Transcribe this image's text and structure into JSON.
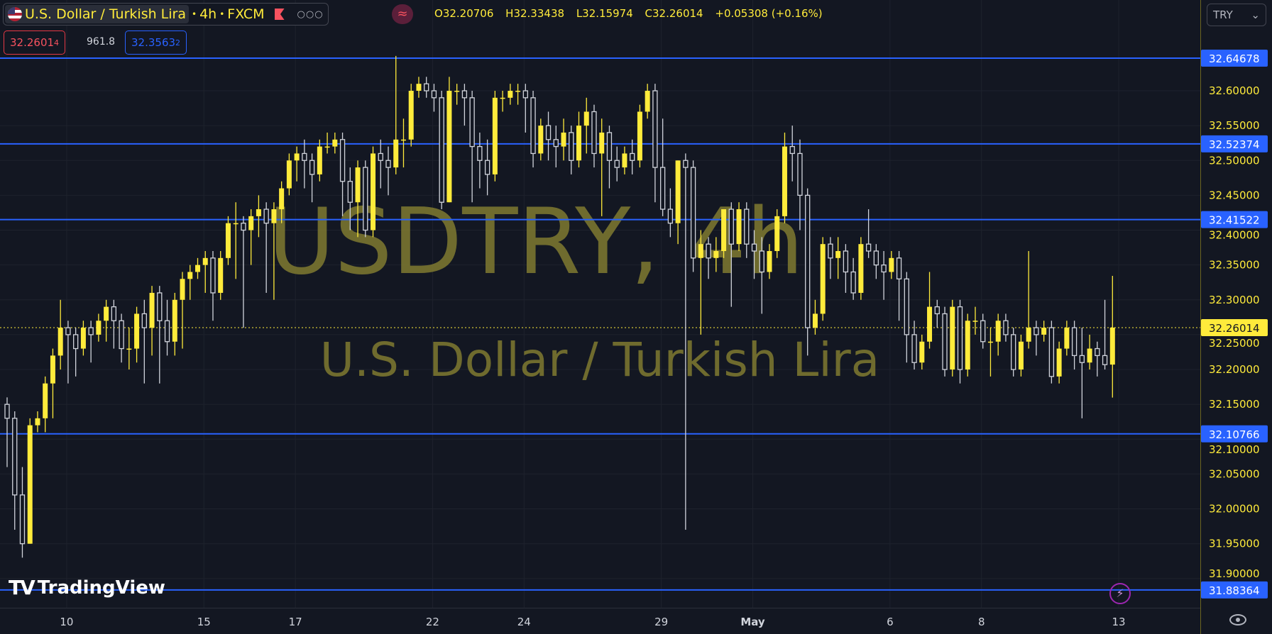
{
  "legend": {
    "symbol": "U.S. Dollar / Turkish Lira",
    "interval": "4h",
    "exchange": "FXCM",
    "more": "○○○",
    "wave": "≈",
    "open_label": "O",
    "open": "32.20706",
    "high_label": "H",
    "high": "32.33438",
    "low_label": "L",
    "low": "32.15974",
    "close_label": "C",
    "close": "32.26014",
    "change": "+0.05308 (+0.16%)"
  },
  "trade": {
    "sell_main": "32.2601",
    "sell_sup": "4",
    "spread": "961.8",
    "buy_main": "32.3563",
    "buy_sup": "2"
  },
  "currency": {
    "value": "TRY",
    "chevron": "⌄"
  },
  "watermark": {
    "line1": "USDTRY, 4h",
    "line2": "U.S. Dollar / Turkish Lira"
  },
  "branding": {
    "logo": "TradingView"
  },
  "icons": {
    "bolt": "⚡",
    "eye": "eye-icon"
  },
  "colors": {
    "up": "#ffeb3b",
    "down": "#d1d4dc",
    "line": "#2962ff",
    "background": "#131722",
    "axis_text": "#ffeb3b",
    "watermark": "#807a30"
  },
  "chart_data": {
    "type": "candlestick",
    "symbol": "USDTRY",
    "interval": "4h",
    "ylim": [
      31.86,
      32.69
    ],
    "y_ticks": [
      "31.90000",
      "31.95000",
      "32.00000",
      "32.05000",
      "32.10000",
      "32.15000",
      "32.20000",
      "32.25000",
      "32.30000",
      "32.35000",
      "32.40000",
      "32.45000",
      "32.50000",
      "32.55000",
      "32.60000"
    ],
    "x_ticks": [
      {
        "label": "10",
        "index": 8
      },
      {
        "label": "15",
        "index": 26
      },
      {
        "label": "17",
        "index": 38
      },
      {
        "label": "22",
        "index": 56
      },
      {
        "label": "24",
        "index": 68
      },
      {
        "label": "29",
        "index": 86
      },
      {
        "label": "May",
        "index": 98,
        "bold": true
      },
      {
        "label": "6",
        "index": 116
      },
      {
        "label": "8",
        "index": 128
      },
      {
        "label": "13",
        "index": 146
      }
    ],
    "horizontal_lines": [
      "32.64678",
      "32.52374",
      "32.41522",
      "32.10766",
      "31.88364"
    ],
    "last_price": "32.26014",
    "candles_ohlc": [
      [
        32.15,
        32.16,
        32.06,
        32.13
      ],
      [
        32.13,
        32.14,
        31.97,
        32.02
      ],
      [
        32.02,
        32.06,
        31.93,
        31.95
      ],
      [
        31.95,
        32.13,
        31.95,
        32.12
      ],
      [
        32.12,
        32.14,
        32.11,
        32.13
      ],
      [
        32.13,
        32.19,
        32.11,
        32.18
      ],
      [
        32.18,
        32.23,
        32.13,
        32.22
      ],
      [
        32.22,
        32.3,
        32.2,
        32.26
      ],
      [
        32.26,
        32.27,
        32.18,
        32.25
      ],
      [
        32.25,
        32.26,
        32.19,
        32.23
      ],
      [
        32.23,
        32.27,
        32.22,
        32.26
      ],
      [
        32.26,
        32.27,
        32.21,
        32.25
      ],
      [
        32.25,
        32.28,
        32.24,
        32.27
      ],
      [
        32.27,
        32.3,
        32.24,
        32.29
      ],
      [
        32.29,
        32.3,
        32.23,
        32.27
      ],
      [
        32.27,
        32.28,
        32.21,
        32.23
      ],
      [
        32.23,
        32.26,
        32.2,
        32.23
      ],
      [
        32.23,
        32.29,
        32.21,
        32.28
      ],
      [
        32.28,
        32.3,
        32.18,
        32.26
      ],
      [
        32.26,
        32.32,
        32.22,
        32.31
      ],
      [
        32.31,
        32.32,
        32.18,
        32.27
      ],
      [
        32.27,
        32.3,
        32.22,
        32.24
      ],
      [
        32.24,
        32.31,
        32.22,
        32.3
      ],
      [
        32.3,
        32.34,
        32.23,
        32.33
      ],
      [
        32.33,
        32.35,
        32.3,
        32.34
      ],
      [
        32.34,
        32.36,
        32.33,
        32.35
      ],
      [
        32.35,
        32.37,
        32.31,
        32.36
      ],
      [
        32.36,
        32.37,
        32.27,
        32.31
      ],
      [
        32.31,
        32.37,
        32.3,
        32.36
      ],
      [
        32.36,
        32.42,
        32.35,
        32.41
      ],
      [
        32.41,
        32.44,
        32.33,
        32.41
      ],
      [
        32.41,
        32.42,
        32.26,
        32.4
      ],
      [
        32.4,
        32.43,
        32.35,
        32.42
      ],
      [
        32.42,
        32.45,
        32.39,
        32.43
      ],
      [
        32.43,
        32.44,
        32.31,
        32.41
      ],
      [
        32.41,
        32.44,
        32.3,
        32.43
      ],
      [
        32.43,
        32.47,
        32.41,
        32.46
      ],
      [
        32.46,
        32.51,
        32.45,
        32.5
      ],
      [
        32.5,
        32.52,
        32.47,
        32.51
      ],
      [
        32.51,
        32.53,
        32.46,
        32.5
      ],
      [
        32.5,
        32.51,
        32.44,
        32.48
      ],
      [
        32.48,
        32.53,
        32.47,
        32.52
      ],
      [
        32.52,
        32.54,
        32.51,
        32.52
      ],
      [
        32.52,
        32.54,
        32.51,
        32.53
      ],
      [
        32.53,
        32.54,
        32.42,
        32.47
      ],
      [
        32.47,
        32.49,
        32.4,
        32.44
      ],
      [
        32.44,
        32.5,
        32.39,
        32.49
      ],
      [
        32.49,
        32.5,
        32.39,
        32.4
      ],
      [
        32.4,
        32.52,
        32.39,
        32.51
      ],
      [
        32.51,
        32.53,
        32.46,
        32.5
      ],
      [
        32.5,
        32.52,
        32.45,
        32.49
      ],
      [
        32.49,
        32.65,
        32.48,
        32.53
      ],
      [
        32.53,
        32.56,
        32.49,
        32.53
      ],
      [
        32.53,
        32.61,
        32.52,
        32.6
      ],
      [
        32.6,
        32.62,
        32.59,
        32.61
      ],
      [
        32.61,
        32.62,
        32.59,
        32.6
      ],
      [
        32.6,
        32.61,
        32.57,
        32.59
      ],
      [
        32.59,
        32.6,
        32.43,
        32.44
      ],
      [
        32.44,
        32.62,
        32.44,
        32.6
      ],
      [
        32.6,
        32.61,
        32.58,
        32.6
      ],
      [
        32.6,
        32.61,
        32.55,
        32.59
      ],
      [
        32.59,
        32.6,
        32.44,
        32.52
      ],
      [
        32.52,
        32.54,
        32.46,
        32.5
      ],
      [
        32.5,
        32.53,
        32.45,
        32.48
      ],
      [
        32.48,
        32.6,
        32.47,
        32.59
      ],
      [
        32.59,
        32.6,
        32.57,
        32.59
      ],
      [
        32.59,
        32.61,
        32.58,
        32.6
      ],
      [
        32.6,
        32.61,
        32.58,
        32.6
      ],
      [
        32.6,
        32.61,
        32.54,
        32.59
      ],
      [
        32.59,
        32.6,
        32.49,
        32.51
      ],
      [
        32.51,
        32.56,
        32.5,
        32.55
      ],
      [
        32.55,
        32.57,
        32.5,
        32.53
      ],
      [
        32.53,
        32.55,
        32.49,
        32.52
      ],
      [
        32.52,
        32.56,
        32.5,
        32.54
      ],
      [
        32.54,
        32.55,
        32.48,
        32.5
      ],
      [
        32.5,
        32.57,
        32.49,
        32.55
      ],
      [
        32.55,
        32.59,
        32.51,
        32.57
      ],
      [
        32.57,
        32.58,
        32.49,
        32.51
      ],
      [
        32.51,
        32.56,
        32.42,
        32.54
      ],
      [
        32.54,
        32.55,
        32.46,
        32.5
      ],
      [
        32.5,
        32.52,
        32.47,
        32.49
      ],
      [
        32.49,
        32.52,
        32.48,
        32.51
      ],
      [
        32.51,
        32.53,
        32.48,
        32.5
      ],
      [
        32.5,
        32.58,
        32.49,
        32.57
      ],
      [
        32.57,
        32.61,
        32.56,
        32.6
      ],
      [
        32.6,
        32.61,
        32.44,
        32.49
      ],
      [
        32.49,
        32.56,
        32.42,
        32.43
      ],
      [
        32.43,
        32.46,
        32.39,
        32.41
      ],
      [
        32.41,
        32.5,
        32.38,
        32.5
      ],
      [
        32.5,
        32.51,
        31.97,
        32.49
      ],
      [
        32.49,
        32.5,
        32.34,
        32.36
      ],
      [
        32.36,
        32.4,
        32.25,
        32.38
      ],
      [
        32.38,
        32.39,
        32.33,
        32.36
      ],
      [
        32.36,
        32.39,
        32.34,
        32.37
      ],
      [
        32.37,
        32.43,
        32.36,
        32.43
      ],
      [
        32.43,
        32.44,
        32.29,
        32.38
      ],
      [
        32.38,
        32.44,
        32.37,
        32.43
      ],
      [
        32.43,
        32.44,
        32.36,
        32.38
      ],
      [
        32.38,
        32.4,
        32.33,
        32.37
      ],
      [
        32.37,
        32.39,
        32.28,
        32.34
      ],
      [
        32.34,
        32.38,
        32.33,
        32.37
      ],
      [
        32.37,
        32.43,
        32.36,
        32.42
      ],
      [
        32.42,
        32.54,
        32.41,
        32.52
      ],
      [
        32.52,
        32.55,
        32.47,
        32.51
      ],
      [
        32.51,
        32.53,
        32.4,
        32.45
      ],
      [
        32.45,
        32.46,
        32.22,
        32.26
      ],
      [
        32.26,
        32.3,
        32.25,
        32.28
      ],
      [
        32.28,
        32.39,
        32.27,
        32.38
      ],
      [
        32.38,
        32.39,
        32.33,
        32.36
      ],
      [
        32.36,
        32.39,
        32.33,
        32.37
      ],
      [
        32.37,
        32.38,
        32.31,
        32.34
      ],
      [
        32.34,
        32.36,
        32.3,
        32.31
      ],
      [
        32.31,
        32.39,
        32.3,
        32.38
      ],
      [
        32.38,
        32.43,
        32.36,
        32.37
      ],
      [
        32.37,
        32.38,
        32.33,
        32.35
      ],
      [
        32.35,
        32.37,
        32.3,
        32.34
      ],
      [
        32.34,
        32.37,
        32.33,
        32.36
      ],
      [
        32.36,
        32.37,
        32.27,
        32.33
      ],
      [
        32.33,
        32.34,
        32.21,
        32.25
      ],
      [
        32.25,
        32.27,
        32.2,
        32.21
      ],
      [
        32.21,
        32.25,
        32.2,
        32.24
      ],
      [
        32.24,
        32.34,
        32.23,
        32.29
      ],
      [
        32.29,
        32.3,
        32.26,
        32.28
      ],
      [
        32.28,
        32.29,
        32.19,
        32.2
      ],
      [
        32.2,
        32.3,
        32.19,
        32.29
      ],
      [
        32.29,
        32.3,
        32.18,
        32.2
      ],
      [
        32.2,
        32.28,
        32.19,
        32.27
      ],
      [
        32.27,
        32.29,
        32.25,
        32.27
      ],
      [
        32.27,
        32.28,
        32.23,
        32.24
      ],
      [
        32.24,
        32.26,
        32.19,
        32.24
      ],
      [
        32.24,
        32.28,
        32.22,
        32.27
      ],
      [
        32.27,
        32.28,
        32.24,
        32.25
      ],
      [
        32.25,
        32.26,
        32.19,
        32.2
      ],
      [
        32.2,
        32.25,
        32.19,
        32.24
      ],
      [
        32.24,
        32.37,
        32.23,
        32.26
      ],
      [
        32.26,
        32.27,
        32.22,
        32.25
      ],
      [
        32.25,
        32.27,
        32.24,
        32.26
      ],
      [
        32.26,
        32.27,
        32.18,
        32.19
      ],
      [
        32.19,
        32.24,
        32.18,
        32.23
      ],
      [
        32.23,
        32.27,
        32.22,
        32.26
      ],
      [
        32.26,
        32.27,
        32.2,
        32.22
      ],
      [
        32.22,
        32.26,
        32.13,
        32.21
      ],
      [
        32.21,
        32.25,
        32.2,
        32.23
      ],
      [
        32.23,
        32.24,
        32.19,
        32.22
      ],
      [
        32.22,
        32.3,
        32.2,
        32.207
      ],
      [
        32.20706,
        32.33438,
        32.15974,
        32.26014
      ]
    ]
  }
}
